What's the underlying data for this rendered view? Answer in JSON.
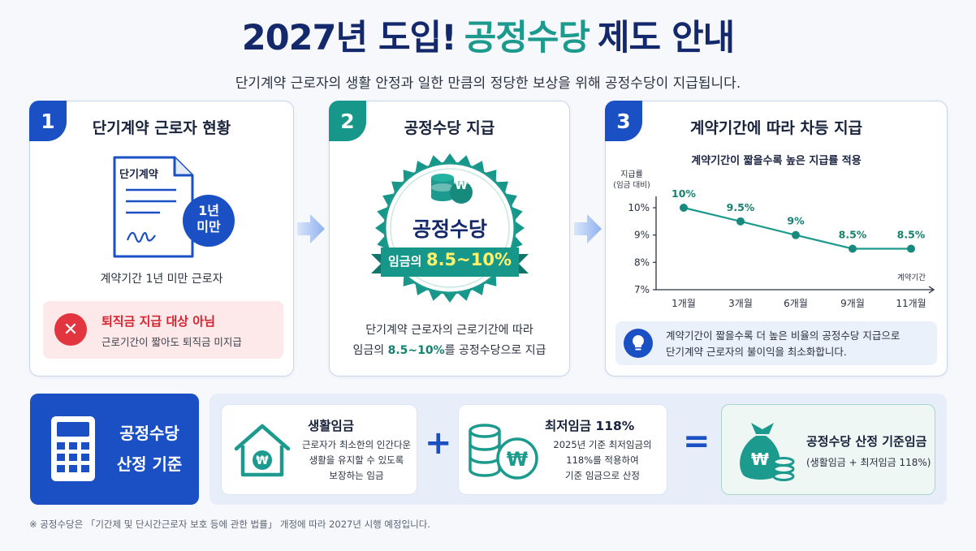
{
  "header": {
    "title_pre": "2027년 도입!",
    "title_accent": "공정수당",
    "title_post": "제도 안내",
    "subtitle": "단기계약 근로자의 생활 안정과 일한 만큼의 정당한 보상을 위해 공정수당이 지급됩니다."
  },
  "card1": {
    "number": "1",
    "title": "단기계약 근로자 현황",
    "doc_label": "단기계약",
    "period_badge_line1": "1년",
    "period_badge_line2": "미만",
    "caption": "계약기간 1년 미만 근로자",
    "warning_title": "퇴직금 지급 대상 아님",
    "warning_desc": "근로기간이 짧아도 퇴직금 미지급"
  },
  "card2": {
    "number": "2",
    "title": "공정수당 지급",
    "seal_title": "공정수당",
    "ribbon_prefix": "임금의",
    "ribbon_value": "8.5~10%",
    "desc_line1": "단기계약 근로자의 근로기간에 따라",
    "desc_line2_pre": "임금의",
    "desc_line2_hl": "8.5~10%",
    "desc_line2_post": "를 공정수당으로 지급"
  },
  "card3": {
    "number": "3",
    "title": "계약기간에 따라 차등 지급",
    "tip_line1": "계약기간이 짧을수록 더 높은 비율의 공정수당 지급으로",
    "tip_line2": "단기계약 근로자의 불이익을 최소화합니다."
  },
  "chart_data": {
    "type": "line",
    "title": "계약기간이 짧을수록 높은 지급률 적용",
    "ylabel_line1": "지급률",
    "ylabel_line2": "(임금 대비)",
    "xlabel": "계약기간",
    "categories": [
      "1개월",
      "3개월",
      "6개월",
      "9개월",
      "11개월"
    ],
    "values": [
      10,
      9.5,
      9,
      8.5,
      8.5
    ],
    "data_labels": [
      "10%",
      "9.5%",
      "9%",
      "8.5%",
      "8.5%"
    ],
    "y_ticks": [
      7,
      8,
      9,
      10
    ],
    "y_tick_labels": [
      "7%",
      "8%",
      "9%",
      "10%"
    ],
    "ylim": [
      7,
      10
    ],
    "grid": false,
    "colors": {
      "line": "#1b9a8d",
      "points": "#178a7e"
    }
  },
  "bottom": {
    "calc_label_line1": "공정수당",
    "calc_label_line2": "산정 기준",
    "living_title": "생활임금",
    "living_desc1": "근로자가 최소한의 인간다운",
    "living_desc2": "생활을 유지할 수 있도록",
    "living_desc3": "보장하는 임금",
    "plus": "+",
    "min_title": "최저임금 118%",
    "min_desc1": "2025년 기준 최저임금의",
    "min_desc2": "118%를 적용하여",
    "min_desc3": "기준 임금으로 산정",
    "equals": "=",
    "result_title": "공정수당 산정 기준임금",
    "result_desc": "(생활임금 + 최저임금 118%)"
  },
  "footnote": "※ 공정수당은 「기간제 및 단시간근로자 보호 등에 관한 법률」 개정에 따라 2027년 시행 예정입니다.",
  "colors": {
    "navy": "#14296b",
    "teal": "#1b9a8d",
    "blue": "#1a50c4",
    "red": "#e33540"
  }
}
